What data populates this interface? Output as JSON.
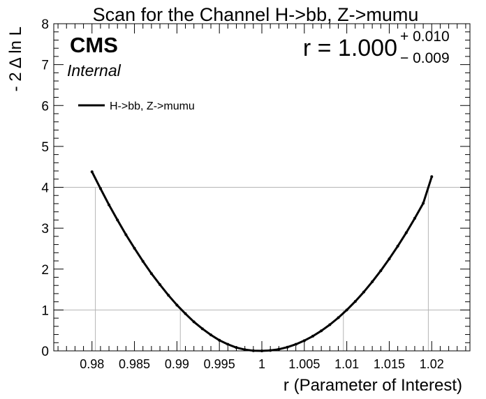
{
  "chart_data": {
    "type": "line",
    "title": "Scan for the Channel H->bb, Z->mumu",
    "xlabel": "r (Parameter of Interest)",
    "ylabel": "- 2 Δ ln L",
    "xlim": [
      0.9755,
      1.0245
    ],
    "ylim": [
      0,
      8
    ],
    "xticks": [
      0.98,
      0.985,
      0.99,
      0.995,
      1,
      1.005,
      1.01,
      1.015,
      1.02
    ],
    "xtick_labels": [
      "0.98",
      "0.985",
      "0.99",
      "0.995",
      "1",
      "1.005",
      "1.01",
      "1.015",
      "1.02"
    ],
    "yticks": [
      0,
      1,
      2,
      3,
      4,
      5,
      6,
      7,
      8
    ],
    "ytick_labels": [
      "0",
      "1",
      "2",
      "3",
      "4",
      "5",
      "6",
      "7",
      "8"
    ],
    "hlines": [
      1,
      4
    ],
    "vlines": [
      0.9804,
      0.9904,
      0.9996,
      1.0096,
      1.0196
    ],
    "grid": false,
    "legend": {
      "position": "top-left",
      "entries": [
        "H->bb, Z->mumu"
      ]
    },
    "badges": {
      "experiment": "CMS",
      "status": "Internal"
    },
    "result": {
      "label": "r = 1.000",
      "up": "+ 0.010",
      "down": "− 0.009"
    },
    "series": [
      {
        "name": "H->bb, Z->mumu",
        "color": "#000000",
        "x": [
          0.98,
          0.981,
          0.982,
          0.983,
          0.984,
          0.985,
          0.986,
          0.987,
          0.988,
          0.989,
          0.99,
          0.991,
          0.992,
          0.993,
          0.994,
          0.995,
          0.996,
          0.997,
          0.998,
          0.999,
          1.0,
          1.001,
          1.002,
          1.003,
          1.004,
          1.005,
          1.006,
          1.007,
          1.008,
          1.009,
          1.01,
          1.011,
          1.012,
          1.013,
          1.014,
          1.015,
          1.016,
          1.017,
          1.018,
          1.019,
          1.02
        ],
        "y": [
          4.38,
          3.97,
          3.57,
          3.2,
          2.84,
          2.51,
          2.19,
          1.89,
          1.62,
          1.36,
          1.12,
          0.91,
          0.71,
          0.54,
          0.39,
          0.26,
          0.16,
          0.08,
          0.03,
          0.005,
          0.0,
          0.01,
          0.04,
          0.09,
          0.16,
          0.25,
          0.36,
          0.49,
          0.64,
          0.81,
          1.0,
          1.21,
          1.44,
          1.69,
          1.96,
          2.25,
          2.56,
          2.89,
          3.24,
          3.61,
          4.26
        ]
      }
    ]
  }
}
